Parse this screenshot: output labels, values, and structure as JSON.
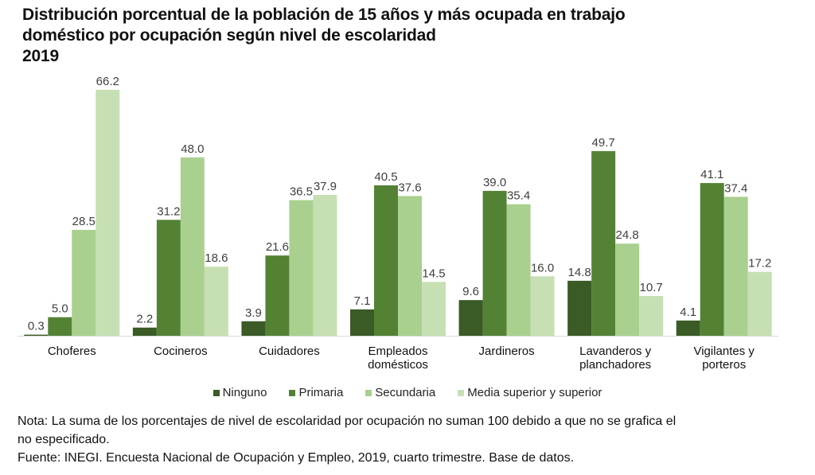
{
  "chart_data": {
    "type": "bar",
    "title": [
      "Distribución porcentual de la población de 15 años y más ocupada en trabajo",
      "doméstico por ocupación según nivel de escolaridad",
      "2019"
    ],
    "xlabel": "",
    "ylabel": "",
    "ylim": [
      0,
      70
    ],
    "grid": false,
    "legend_position": "bottom",
    "categories": [
      [
        "Choferes"
      ],
      [
        "Cocineros"
      ],
      [
        "Cuidadores"
      ],
      [
        "Empleados",
        "domésticos"
      ],
      [
        "Jardineros"
      ],
      [
        "Lavanderos y",
        "planchadores"
      ],
      [
        "Vigilantes y",
        "porteros"
      ]
    ],
    "series": [
      {
        "name": "Ninguno",
        "color": "#3a5a26",
        "values": [
          0.3,
          2.2,
          3.9,
          7.1,
          9.6,
          14.8,
          4.1
        ],
        "labels": [
          "0.3",
          "2.2",
          "3.9",
          "7.1",
          "9.6",
          "14.8",
          "4.1"
        ]
      },
      {
        "name": "Primaria",
        "color": "#548235",
        "values": [
          5.0,
          31.2,
          21.6,
          40.5,
          39.0,
          49.7,
          41.1
        ],
        "labels": [
          "5.0",
          "31.2",
          "21.6",
          "40.5",
          "39.0",
          "49.7",
          "41.1"
        ]
      },
      {
        "name": "Secundaria",
        "color": "#a9d08e",
        "values": [
          28.5,
          48.0,
          36.5,
          37.6,
          35.4,
          24.8,
          37.4
        ],
        "labels": [
          "28.5",
          "48.0",
          "36.5",
          "37.6",
          "35.4",
          "24.8",
          "37.4"
        ]
      },
      {
        "name": "Media superior y superior",
        "color": "#c6e0b4",
        "values": [
          66.2,
          18.6,
          37.9,
          14.5,
          16.0,
          10.7,
          17.2
        ],
        "labels": [
          "66.2",
          "18.6",
          "37.9",
          "14.5",
          "16.0",
          "10.7",
          "17.2"
        ]
      }
    ]
  },
  "notes": {
    "nota_line1": "Nota: La suma de los porcentajes de nivel de escolaridad por ocupación no suman 100 debido a que no se grafica el",
    "nota_line2": "no especificado.",
    "fuente": "Fuente: INEGI. Encuesta Nacional de Ocupación y Empleo, 2019, cuarto trimestre. Base de datos."
  }
}
